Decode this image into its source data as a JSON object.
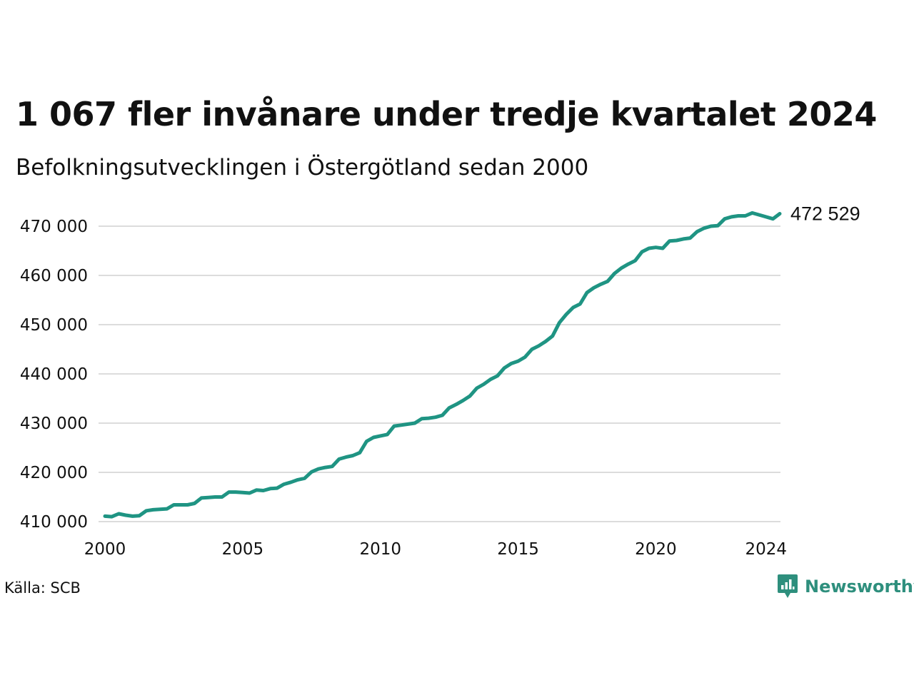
{
  "chart_data": {
    "type": "line",
    "title": "1 067 fler invånare under tredje kvartalet 2024",
    "subtitle": "Befolkningsutvecklingen i Östergötland sedan 2000",
    "y_ticks": [
      410000,
      420000,
      430000,
      440000,
      450000,
      460000,
      470000
    ],
    "y_tick_labels": [
      "410 000",
      "420 000",
      "430 000",
      "440 000",
      "450 000",
      "460 000",
      "470 000"
    ],
    "x_ticks": [
      2000,
      2005,
      2010,
      2015,
      2020,
      2024
    ],
    "x_tick_labels": [
      "2000",
      "2005",
      "2010",
      "2015",
      "2020",
      "2024"
    ],
    "xlim": [
      2000,
      2024.5
    ],
    "ylim": [
      410000,
      472800
    ],
    "grid": "horizontal",
    "line_color": "#1f9483",
    "end_label": "472 529",
    "series": [
      {
        "x": [
          2000.0,
          2000.25,
          2000.5,
          2000.75,
          2001.0,
          2001.25,
          2001.5,
          2001.75,
          2002.0,
          2002.25,
          2002.5,
          2002.75,
          2003.0,
          2003.25,
          2003.5,
          2003.75,
          2004.0,
          2004.25,
          2004.5,
          2004.75,
          2005.0,
          2005.25,
          2005.5,
          2005.75,
          2006.0,
          2006.25,
          2006.5,
          2006.75,
          2007.0,
          2007.25,
          2007.5,
          2007.75,
          2008.0,
          2008.25,
          2008.5,
          2008.75,
          2009.0,
          2009.25,
          2009.5,
          2009.75,
          2010.0,
          2010.25,
          2010.5,
          2010.75,
          2011.0,
          2011.25,
          2011.5,
          2011.75,
          2012.0,
          2012.25,
          2012.5,
          2012.75,
          2013.0,
          2013.25,
          2013.5,
          2013.75,
          2014.0,
          2014.25,
          2014.5,
          2014.75,
          2015.0,
          2015.25,
          2015.5,
          2015.75,
          2016.0,
          2016.25,
          2016.5,
          2016.75,
          2017.0,
          2017.25,
          2017.5,
          2017.75,
          2018.0,
          2018.25,
          2018.5,
          2018.75,
          2019.0,
          2019.25,
          2019.5,
          2019.75,
          2020.0,
          2020.25,
          2020.5,
          2020.75,
          2021.0,
          2021.25,
          2021.5,
          2021.75,
          2022.0,
          2022.25,
          2022.5,
          2022.75,
          2023.0,
          2023.25,
          2023.5,
          2023.75,
          2024.0,
          2024.25,
          2024.5
        ],
        "values": [
          411100,
          411000,
          411600,
          411300,
          411100,
          411200,
          412200,
          412400,
          412500,
          412600,
          413400,
          413400,
          413400,
          413700,
          414800,
          414900,
          415000,
          415000,
          416000,
          416000,
          415900,
          415800,
          416400,
          416300,
          416700,
          416800,
          417600,
          418000,
          418500,
          418800,
          420100,
          420700,
          421000,
          421200,
          422700,
          423100,
          423400,
          424000,
          426300,
          427100,
          427400,
          427700,
          429400,
          429600,
          429800,
          430000,
          430900,
          431000,
          431200,
          431600,
          433100,
          433800,
          434600,
          435500,
          437100,
          437900,
          438900,
          439600,
          441200,
          442100,
          442600,
          443400,
          445000,
          445700,
          446600,
          447700,
          450400,
          452100,
          453500,
          454200,
          456500,
          457500,
          458200,
          458800,
          460400,
          461500,
          462300,
          463000,
          464800,
          465500,
          465700,
          465500,
          467000,
          467100,
          467400,
          467600,
          468900,
          469600,
          470000,
          470100,
          471500,
          471900,
          472100,
          472100,
          472700,
          472300,
          471900,
          471500,
          472529
        ]
      }
    ]
  },
  "footer": {
    "source": "Källa: SCB",
    "brand": "Newsworthy",
    "brand_icon": "newsworthy-logo-icon",
    "brand_color": "#2e8f7d"
  }
}
